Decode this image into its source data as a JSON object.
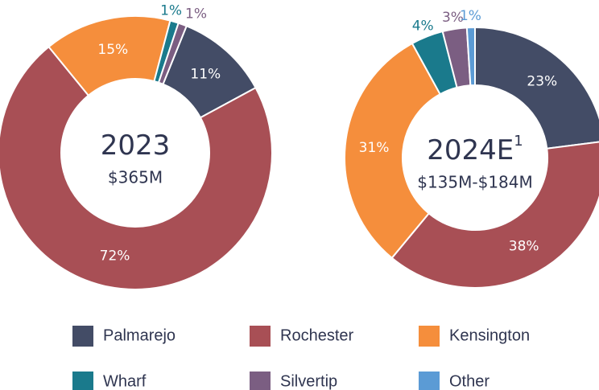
{
  "chart_data": [
    {
      "type": "pie",
      "title": "2023",
      "subtitle": "$365M",
      "categories": [
        "Palmarejo",
        "Rochester",
        "Kensington",
        "Wharf",
        "Silvertip"
      ],
      "values": [
        11,
        72,
        15,
        1,
        1
      ],
      "value_labels": [
        "11%",
        "72%",
        "15%",
        "1%",
        "1%"
      ]
    },
    {
      "type": "pie",
      "title": "2024E",
      "title_footnote": "1",
      "subtitle": "$135M-$184M",
      "categories": [
        "Palmarejo",
        "Rochester",
        "Kensington",
        "Wharf",
        "Silvertip",
        "Other"
      ],
      "values": [
        23,
        38,
        31,
        4,
        3,
        1
      ],
      "value_labels": [
        "23%",
        "38%",
        "31%",
        "4%",
        "3%",
        "1%"
      ]
    }
  ],
  "legend": {
    "items": [
      {
        "name": "Palmarejo",
        "color": "#434c66"
      },
      {
        "name": "Rochester",
        "color": "#a84f55"
      },
      {
        "name": "Kensington",
        "color": "#f58e3c"
      },
      {
        "name": "Wharf",
        "color": "#1a7a8c"
      },
      {
        "name": "Silvertip",
        "color": "#7b5e82"
      },
      {
        "name": "Other",
        "color": "#5b9bd5"
      }
    ]
  }
}
